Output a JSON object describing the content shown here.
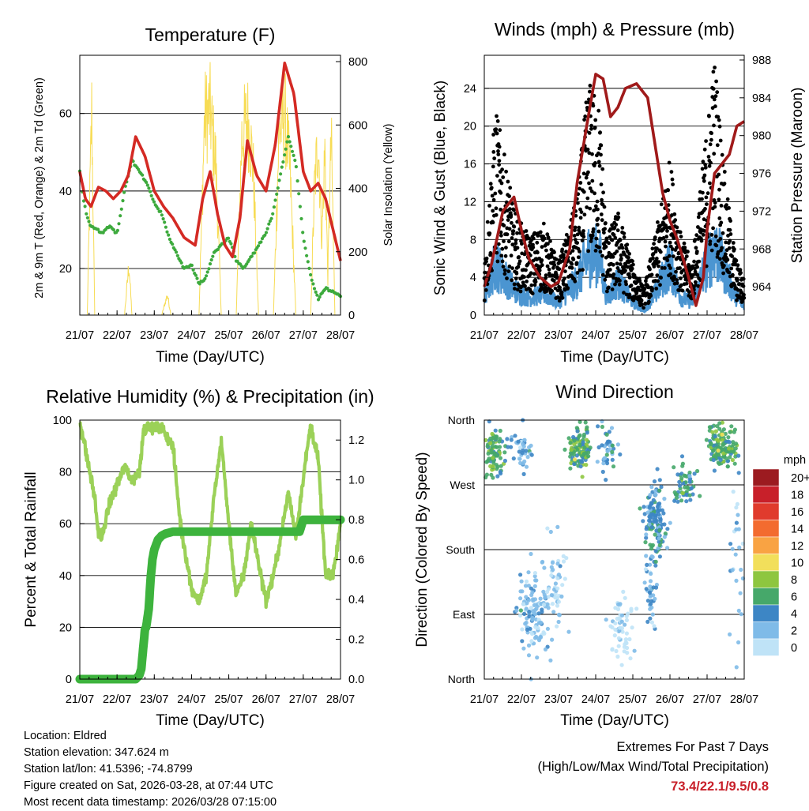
{
  "colors": {
    "temp": "#d42a24",
    "dew": "#3daa3d",
    "solar": "#f7dc55",
    "gust": "#000000",
    "wind": "#4b95d1",
    "pressure": "#a01a1a",
    "rh": "#9bd158",
    "precip": "#3db33d"
  },
  "footer": {
    "location": "Location: Eldred",
    "elevation": "Station elevation: 347.624 m",
    "latlon": "Station lat/lon: 41.5396; -74.8799",
    "created": "Figure created on Sat, 2026-03-28, at 07:44 UTC",
    "recent": "Most recent data timestamp: 2026/03/28 07:15:00"
  },
  "extremes": {
    "title": "Extremes For Past 7 Days",
    "subtitle": "(High/Low/Max Wind/Total Precipitation)",
    "values": "73.4/22.1/9.5/0.8"
  },
  "chart_data": [
    {
      "id": "temperature",
      "type": "line",
      "title": "Temperature (F)",
      "xlabel": "Time (Day/UTC)",
      "ylabel": "2m & 9m T (Red, Orange) & 2m Td (Green)",
      "y2label": "Solar Insolation (Yellow)",
      "xticks": [
        "21/07",
        "22/07",
        "23/07",
        "24/07",
        "25/07",
        "26/07",
        "27/07",
        "28/07"
      ],
      "xlim": [
        0,
        7
      ],
      "ylim": [
        8,
        75
      ],
      "yticks": [
        20,
        40,
        60
      ],
      "y2lim": [
        0,
        820
      ],
      "y2ticks": [
        0,
        200,
        400,
        600,
        800
      ],
      "series": [
        {
          "name": "2m T",
          "axis": "left",
          "style": "line",
          "color": "#d42a24",
          "x": [
            0,
            0.15,
            0.3,
            0.5,
            0.7,
            0.9,
            1.1,
            1.3,
            1.5,
            1.75,
            2.0,
            2.25,
            2.5,
            2.8,
            3.1,
            3.3,
            3.5,
            3.7,
            3.9,
            4.1,
            4.3,
            4.5,
            4.75,
            5.0,
            5.25,
            5.5,
            5.75,
            6.0,
            6.2,
            6.4,
            6.6,
            6.8,
            7.0
          ],
          "y": [
            45,
            38,
            36,
            41,
            40,
            38,
            40,
            44,
            54,
            49,
            40,
            36,
            33,
            28,
            26,
            38,
            45,
            34,
            26,
            23,
            33,
            53,
            44,
            40,
            52,
            73,
            65,
            45,
            40,
            42,
            38,
            30,
            22
          ]
        },
        {
          "name": "2m Td",
          "axis": "left",
          "style": "dots",
          "color": "#3daa3d",
          "x": [
            0,
            0.1,
            0.2,
            0.3,
            0.45,
            0.6,
            0.8,
            1.0,
            1.2,
            1.4,
            1.6,
            1.8,
            2.0,
            2.2,
            2.4,
            2.6,
            2.8,
            3.0,
            3.2,
            3.4,
            3.6,
            3.8,
            4.0,
            4.2,
            4.4,
            4.6,
            4.8,
            5.0,
            5.2,
            5.4,
            5.6,
            5.8,
            6.0,
            6.2,
            6.4,
            6.6,
            6.8,
            7.0
          ],
          "y": [
            45,
            38,
            33,
            31,
            30,
            29,
            31,
            29,
            40,
            48,
            45,
            42,
            37,
            34,
            28,
            24,
            20,
            21,
            16,
            18,
            24,
            26,
            28,
            22,
            20,
            23,
            26,
            29,
            35,
            45,
            54,
            47,
            28,
            18,
            12,
            15,
            14,
            13
          ]
        },
        {
          "name": "Solar Insolation",
          "axis": "right",
          "style": "thin",
          "color": "#f7dc55",
          "x": [
            0,
            0.2,
            0.32,
            0.4,
            0.55,
            0.75,
            1.2,
            1.32,
            1.4,
            1.55,
            1.75,
            2.2,
            2.35,
            2.45,
            2.6,
            2.8,
            3.2,
            3.35,
            3.5,
            3.65,
            3.8,
            4.2,
            4.35,
            4.5,
            4.65,
            4.8,
            5.2,
            5.35,
            5.5,
            5.65,
            5.8,
            6.2,
            6.3,
            6.4,
            6.5,
            6.58,
            6.66,
            6.75,
            6.85,
            7.0
          ],
          "y": [
            0,
            0,
            800,
            0,
            0,
            0,
            0,
            200,
            0,
            0,
            0,
            0,
            80,
            0,
            0,
            0,
            0,
            780,
            800,
            600,
            0,
            0,
            700,
            780,
            600,
            0,
            0,
            720,
            800,
            550,
            0,
            0,
            500,
            700,
            300,
            650,
            150,
            700,
            0,
            0
          ]
        }
      ]
    },
    {
      "id": "winds",
      "type": "scatter",
      "title": "Winds (mph) & Pressure (mb)",
      "xlabel": "Time (Day/UTC)",
      "ylabel": "Sonic Wind & Gust (Blue, Black)",
      "y2label": "Station Pressure (Maroon)",
      "xticks": [
        "21/07",
        "22/07",
        "23/07",
        "24/07",
        "25/07",
        "26/07",
        "27/07",
        "28/07"
      ],
      "xlim": [
        0,
        7
      ],
      "ylim": [
        0,
        27.5
      ],
      "yticks": [
        0,
        4,
        8,
        12,
        16,
        20,
        24
      ],
      "y2lim": [
        961,
        988.5
      ],
      "y2ticks": [
        964,
        968,
        972,
        976,
        980,
        984,
        988
      ],
      "series": [
        {
          "name": "Station Pressure",
          "axis": "right",
          "style": "line",
          "color": "#a01a1a",
          "x": [
            0,
            0.2,
            0.5,
            0.8,
            1.0,
            1.2,
            1.5,
            1.8,
            2.0,
            2.3,
            2.5,
            2.8,
            3.0,
            3.2,
            3.4,
            3.6,
            3.8,
            4.1,
            4.4,
            4.6,
            4.8,
            5.0,
            5.2,
            5.5,
            5.7,
            5.9,
            6.0,
            6.2,
            6.4,
            6.6,
            6.8,
            7.0
          ],
          "y": [
            964,
            966.5,
            972,
            973.5,
            970,
            967,
            965,
            964,
            964.5,
            968,
            975,
            982,
            986.5,
            986,
            982,
            983,
            985,
            985.5,
            984,
            979,
            974,
            971,
            969,
            965,
            962,
            965,
            970,
            976,
            977,
            978,
            981,
            981.5
          ]
        },
        {
          "name": "Gust",
          "axis": "left",
          "style": "dots",
          "color": "#000000",
          "profile_x": [
            0,
            0.3,
            0.8,
            1.2,
            1.6,
            2.0,
            2.5,
            2.8,
            3.1,
            3.3,
            3.6,
            4.0,
            4.3,
            4.6,
            5.0,
            5.3,
            5.6,
            5.9,
            6.2,
            6.5,
            6.8,
            7.0
          ],
          "profile_y": [
            4,
            16,
            8,
            6,
            7,
            4,
            9,
            18,
            16,
            6,
            8,
            4,
            2,
            6,
            12,
            6,
            4,
            12,
            20,
            10,
            4,
            3
          ]
        },
        {
          "name": "Sonic Wind",
          "axis": "left",
          "style": "band",
          "color": "#4b95d1",
          "profile_x": [
            0,
            0.3,
            0.8,
            1.2,
            1.6,
            2.0,
            2.5,
            2.8,
            3.1,
            3.3,
            3.6,
            4.0,
            4.3,
            4.6,
            5.0,
            5.3,
            5.6,
            5.9,
            6.2,
            6.5,
            6.8,
            7.0
          ],
          "profile_y": [
            2,
            6,
            3,
            2,
            2.5,
            1.5,
            4,
            7,
            7,
            2,
            4,
            1.5,
            0.5,
            2.5,
            6,
            2,
            1.5,
            5,
            8,
            5,
            2,
            1
          ]
        }
      ]
    },
    {
      "id": "humidity",
      "type": "line",
      "title": "Relative Humidity (%) & Precipitation (in)",
      "xlabel": "Time (Day/UTC)",
      "ylabel": "Percent & Total Rainfall",
      "xticks": [
        "21/07",
        "22/07",
        "23/07",
        "24/07",
        "25/07",
        "26/07",
        "27/07",
        "28/07"
      ],
      "xlim": [
        0,
        7
      ],
      "ylim": [
        0,
        100
      ],
      "yticks": [
        0,
        20,
        40,
        60,
        80,
        100
      ],
      "y2lim": [
        0,
        1.3
      ],
      "y2ticks": [
        "0.0",
        "0.2",
        "0.4",
        "0.6",
        "0.8",
        "1.0",
        "1.2"
      ],
      "series": [
        {
          "name": "Relative Humidity",
          "axis": "left",
          "style": "line",
          "color": "#9bd158",
          "x": [
            0,
            0.2,
            0.4,
            0.5,
            0.6,
            0.8,
            1.0,
            1.2,
            1.4,
            1.6,
            1.7,
            1.8,
            2.0,
            2.2,
            2.5,
            2.7,
            3.0,
            3.2,
            3.4,
            3.6,
            3.8,
            4.0,
            4.2,
            4.4,
            4.6,
            4.8,
            5.0,
            5.2,
            5.4,
            5.6,
            5.8,
            6.0,
            6.2,
            6.4,
            6.6,
            6.8,
            7.0
          ],
          "y": [
            100,
            85,
            70,
            56,
            55,
            68,
            75,
            82,
            77,
            80,
            95,
            98,
            97,
            97,
            90,
            60,
            35,
            30,
            40,
            70,
            92,
            60,
            32,
            40,
            60,
            45,
            30,
            40,
            55,
            72,
            55,
            78,
            98,
            85,
            40,
            40,
            60
          ]
        },
        {
          "name": "Total Precipitation",
          "axis": "right",
          "style": "thick",
          "color": "#3db33d",
          "x": [
            0,
            1.5,
            1.6,
            1.65,
            1.7,
            1.75,
            1.78,
            1.85,
            1.9,
            1.95,
            2.0,
            2.1,
            2.2,
            2.3,
            2.5,
            5.9,
            5.95,
            6.0,
            7.0
          ],
          "y": [
            0,
            0,
            0.02,
            0.05,
            0.15,
            0.25,
            0.26,
            0.35,
            0.5,
            0.6,
            0.65,
            0.7,
            0.72,
            0.73,
            0.74,
            0.74,
            0.77,
            0.8,
            0.8
          ]
        }
      ]
    },
    {
      "id": "direction",
      "type": "scatter",
      "title": "Wind Direction",
      "xlabel": "Time (Day/UTC)",
      "ylabel": "Direction (Colored By Speed)",
      "xticks": [
        "21/07",
        "22/07",
        "23/07",
        "24/07",
        "25/07",
        "26/07",
        "27/07",
        "28/07"
      ],
      "xlim": [
        0,
        7
      ],
      "ylim": [
        0,
        360
      ],
      "yticks": [
        "North",
        "East",
        "South",
        "West",
        "North"
      ],
      "legend": {
        "title": "mph",
        "labels": [
          "20+",
          "18",
          "16",
          "14",
          "12",
          "10",
          "8",
          "6",
          "4",
          "2",
          "0"
        ],
        "colors": [
          "#9c1b20",
          "#c8202a",
          "#e03b2d",
          "#f36b2f",
          "#f9a343",
          "#f2df5b",
          "#8ec63f",
          "#46a86a",
          "#3d86c5",
          "#7fbbe8",
          "#bfe3f7"
        ]
      },
      "clusters": [
        {
          "x": 0.3,
          "y": 315,
          "sx": 0.25,
          "sy": 25,
          "n": 90,
          "speed": 6
        },
        {
          "x": 1.0,
          "y": 310,
          "sx": 0.3,
          "sy": 30,
          "n": 40,
          "speed": 3
        },
        {
          "x": 1.3,
          "y": 90,
          "sx": 0.4,
          "sy": 50,
          "n": 120,
          "speed": 2
        },
        {
          "x": 1.9,
          "y": 130,
          "sx": 0.3,
          "sy": 60,
          "n": 60,
          "speed": 1
        },
        {
          "x": 2.6,
          "y": 320,
          "sx": 0.3,
          "sy": 25,
          "n": 110,
          "speed": 6
        },
        {
          "x": 3.3,
          "y": 320,
          "sx": 0.3,
          "sy": 30,
          "n": 40,
          "speed": 4
        },
        {
          "x": 3.7,
          "y": 70,
          "sx": 0.3,
          "sy": 40,
          "n": 60,
          "speed": 0
        },
        {
          "x": 4.6,
          "y": 220,
          "sx": 0.25,
          "sy": 45,
          "n": 130,
          "speed": 4
        },
        {
          "x": 4.5,
          "y": 120,
          "sx": 0.15,
          "sy": 40,
          "n": 40,
          "speed": 3
        },
        {
          "x": 5.4,
          "y": 270,
          "sx": 0.3,
          "sy": 25,
          "n": 60,
          "speed": 5
        },
        {
          "x": 6.4,
          "y": 325,
          "sx": 0.35,
          "sy": 25,
          "n": 140,
          "speed": 6
        },
        {
          "x": 6.8,
          "y": 150,
          "sx": 0.2,
          "sy": 90,
          "n": 25,
          "speed": 2
        }
      ]
    }
  ]
}
